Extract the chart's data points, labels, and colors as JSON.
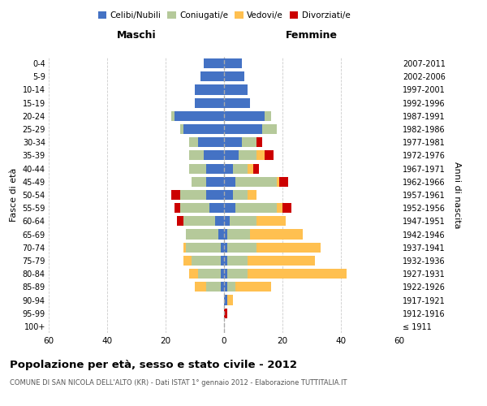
{
  "age_groups": [
    "100+",
    "95-99",
    "90-94",
    "85-89",
    "80-84",
    "75-79",
    "70-74",
    "65-69",
    "60-64",
    "55-59",
    "50-54",
    "45-49",
    "40-44",
    "35-39",
    "30-34",
    "25-29",
    "20-24",
    "15-19",
    "10-14",
    "5-9",
    "0-4"
  ],
  "birth_years": [
    "≤ 1911",
    "1912-1916",
    "1917-1921",
    "1922-1926",
    "1927-1931",
    "1932-1936",
    "1937-1941",
    "1942-1946",
    "1947-1951",
    "1952-1956",
    "1957-1961",
    "1962-1966",
    "1967-1971",
    "1972-1976",
    "1977-1981",
    "1982-1986",
    "1987-1991",
    "1992-1996",
    "1997-2001",
    "2002-2006",
    "2007-2011"
  ],
  "maschi": {
    "celibi": [
      0,
      0,
      0,
      1,
      1,
      1,
      1,
      2,
      3,
      5,
      6,
      6,
      6,
      7,
      9,
      14,
      17,
      10,
      10,
      8,
      7
    ],
    "coniugati": [
      0,
      0,
      0,
      5,
      8,
      10,
      12,
      11,
      11,
      10,
      9,
      5,
      6,
      5,
      3,
      1,
      1,
      0,
      0,
      0,
      0
    ],
    "vedovi": [
      0,
      0,
      0,
      4,
      3,
      3,
      1,
      0,
      0,
      0,
      0,
      0,
      0,
      0,
      0,
      0,
      0,
      0,
      0,
      0,
      0
    ],
    "divorziati": [
      0,
      0,
      0,
      0,
      0,
      0,
      0,
      0,
      2,
      2,
      3,
      0,
      0,
      0,
      0,
      0,
      0,
      0,
      0,
      0,
      0
    ]
  },
  "femmine": {
    "nubili": [
      0,
      0,
      1,
      1,
      1,
      1,
      1,
      1,
      2,
      4,
      3,
      4,
      3,
      5,
      6,
      13,
      14,
      9,
      8,
      7,
      6
    ],
    "coniugate": [
      0,
      0,
      0,
      3,
      7,
      7,
      10,
      8,
      9,
      14,
      5,
      14,
      5,
      6,
      5,
      5,
      2,
      0,
      0,
      0,
      0
    ],
    "vedove": [
      0,
      0,
      2,
      12,
      34,
      23,
      22,
      18,
      10,
      2,
      3,
      1,
      2,
      3,
      0,
      0,
      0,
      0,
      0,
      0,
      0
    ],
    "divorziate": [
      0,
      1,
      0,
      0,
      0,
      0,
      0,
      0,
      0,
      3,
      0,
      3,
      2,
      3,
      2,
      0,
      0,
      0,
      0,
      0,
      0
    ]
  },
  "colors": {
    "celibi_nubili": "#4472c4",
    "coniugati": "#b5c99a",
    "vedovi": "#ffc050",
    "divorziati": "#cc0000"
  },
  "title": "Popolazione per età, sesso e stato civile - 2012",
  "subtitle": "COMUNE DI SAN NICOLA DELL'ALTO (KR) - Dati ISTAT 1° gennaio 2012 - Elaborazione TUTTITALIA.IT",
  "ylabel": "Fasce di età",
  "right_ylabel": "Anni di nascita",
  "xlabel_left": "Maschi",
  "xlabel_right": "Femmine",
  "xlim": 60,
  "background_color": "#ffffff",
  "grid_color": "#cccccc"
}
